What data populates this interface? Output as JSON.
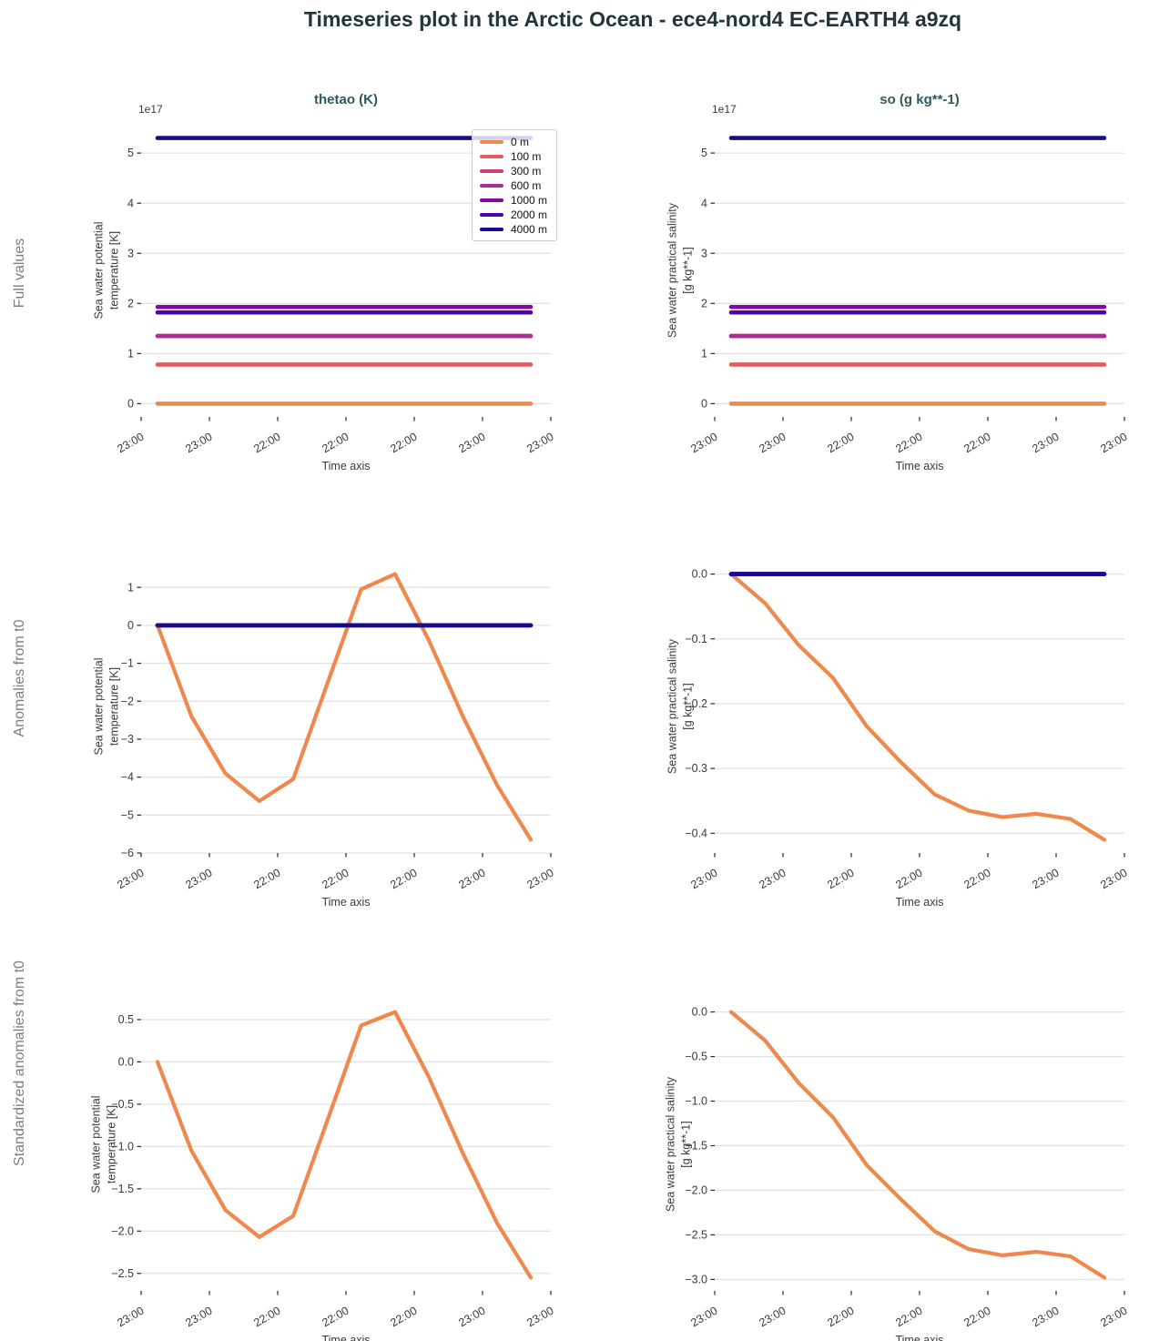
{
  "title": "Timeseries plot in the Arctic Ocean - ece4-nord4 EC-EARTH4 a9zq",
  "columns": [
    {
      "title": "thetao (K)"
    },
    {
      "title": "so (g kg**-1)"
    }
  ],
  "rows": [
    {
      "label": "Full values"
    },
    {
      "label": "Anomalies from t0"
    },
    {
      "label": "Standardized anomalies from t0"
    }
  ],
  "colors": {
    "title": "#22343c",
    "subplot_title": "#2c5a5a",
    "row_label": "#7e7e7e",
    "grid": "#e3e3e3",
    "tick_mark": "#262626",
    "tick_text": "#3a3a3a",
    "legend_border": "#cccccc",
    "depth_0m": "#f0884e",
    "depth_100m": "#de5f5b",
    "depth_300m": "#c64278",
    "depth_600m": "#ae2a94",
    "depth_1000m": "#8309a5",
    "depth_2000m": "#4d05a3",
    "depth_4000m": "#150d8d"
  },
  "legend": {
    "entries": [
      {
        "label": "0 m",
        "color": "#f0884e"
      },
      {
        "label": "100 m",
        "color": "#de5f5b"
      },
      {
        "label": "300 m",
        "color": "#c64278"
      },
      {
        "label": "600 m",
        "color": "#ae2a94"
      },
      {
        "label": "1000 m",
        "color": "#8309a5"
      },
      {
        "label": "2000 m",
        "color": "#4d05a3"
      },
      {
        "label": "4000 m",
        "color": "#150d8d"
      }
    ]
  },
  "time_axis": {
    "label": "Time axis",
    "tick_labels": [
      "23:00",
      "23:00",
      "22:00",
      "22:00",
      "22:00",
      "23:00",
      "23:00"
    ]
  },
  "chart_data": [
    {
      "id": "full-thetao",
      "type": "line",
      "row": "Full values",
      "col": "thetao (K)",
      "ylabel_lines": [
        "Sea water potential",
        "temperature [K]"
      ],
      "offset_text": "1e17",
      "ylim": [
        -0.265,
        5.565
      ],
      "grid": true,
      "legend": true,
      "legend_position": "upper right",
      "yticks": [
        {
          "v": 0,
          "label": "0"
        },
        {
          "v": 1,
          "label": "1"
        },
        {
          "v": 2,
          "label": "2"
        },
        {
          "v": 3,
          "label": "3"
        },
        {
          "v": 4,
          "label": "4"
        },
        {
          "v": 5,
          "label": "5"
        }
      ],
      "series": [
        {
          "name": "0 m",
          "color": "#f0884e",
          "values": 0.0
        },
        {
          "name": "100 m",
          "color": "#de5f5b",
          "values": 0.78
        },
        {
          "name": "300 m",
          "color": "#c64278",
          "values": 1.35
        },
        {
          "name": "600 m",
          "color": "#ae2a94",
          "values": 1.35
        },
        {
          "name": "1000 m",
          "color": "#8309a5",
          "values": 1.93
        },
        {
          "name": "2000 m",
          "color": "#4d05a3",
          "values": 1.82
        },
        {
          "name": "4000 m",
          "color": "#150d8d",
          "values": 5.3
        }
      ]
    },
    {
      "id": "full-so",
      "type": "line",
      "row": "Full values",
      "col": "so (g kg**-1)",
      "ylabel_lines": [
        "Sea water practical salinity",
        "[g kg**-1]"
      ],
      "offset_text": "1e17",
      "ylim": [
        -0.265,
        5.565
      ],
      "grid": true,
      "legend": false,
      "yticks": [
        {
          "v": 0,
          "label": "0"
        },
        {
          "v": 1,
          "label": "1"
        },
        {
          "v": 2,
          "label": "2"
        },
        {
          "v": 3,
          "label": "3"
        },
        {
          "v": 4,
          "label": "4"
        },
        {
          "v": 5,
          "label": "5"
        }
      ],
      "series": [
        {
          "name": "0 m",
          "color": "#f0884e",
          "values": 0.0
        },
        {
          "name": "100 m",
          "color": "#de5f5b",
          "values": 0.78
        },
        {
          "name": "300 m",
          "color": "#c64278",
          "values": 1.35
        },
        {
          "name": "600 m",
          "color": "#ae2a94",
          "values": 1.35
        },
        {
          "name": "1000 m",
          "color": "#8309a5",
          "values": 1.93
        },
        {
          "name": "2000 m",
          "color": "#4d05a3",
          "values": 1.82
        },
        {
          "name": "4000 m",
          "color": "#150d8d",
          "values": 5.3
        }
      ]
    },
    {
      "id": "anomaly-thetao",
      "type": "line",
      "row": "Anomalies from t0",
      "col": "thetao (K)",
      "ylabel_lines": [
        "Sea water potential",
        "temperature [K]"
      ],
      "offset_text": "",
      "ylim": [
        -6.0,
        1.7
      ],
      "grid": true,
      "legend": false,
      "yticks": [
        {
          "v": 1,
          "label": "1"
        },
        {
          "v": 0,
          "label": "0"
        },
        {
          "v": -1,
          "label": "−1"
        },
        {
          "v": -2,
          "label": "−2"
        },
        {
          "v": -3,
          "label": "−3"
        },
        {
          "v": -4,
          "label": "−4"
        },
        {
          "v": -5,
          "label": "−5"
        },
        {
          "v": -6,
          "label": "−6"
        }
      ],
      "series": [
        {
          "name": "0 m",
          "color": "#f0884e",
          "values": [
            0.0,
            -2.4,
            -3.9,
            -4.63,
            -4.05,
            -1.55,
            0.95,
            1.35,
            -0.4,
            -2.4,
            -4.2,
            -5.65
          ]
        },
        {
          "name": "100 m",
          "color": "#de5f5b",
          "values": 0.0
        },
        {
          "name": "300 m",
          "color": "#c64278",
          "values": 0.0
        },
        {
          "name": "600 m",
          "color": "#ae2a94",
          "values": 0.0
        },
        {
          "name": "1000 m",
          "color": "#8309a5",
          "values": 0.0
        },
        {
          "name": "2000 m",
          "color": "#4d05a3",
          "values": 0.0
        },
        {
          "name": "4000 m",
          "color": "#150d8d",
          "values": 0.0
        }
      ]
    },
    {
      "id": "anomaly-so",
      "type": "line",
      "row": "Anomalies from t0",
      "col": "so (g kg**-1)",
      "ylabel_lines": [
        "Sea water practical salinity",
        "[g kg**-1]"
      ],
      "offset_text": "",
      "ylim": [
        -0.4305,
        0.0205
      ],
      "grid": true,
      "legend": false,
      "yticks": [
        {
          "v": 0.0,
          "label": "0.0"
        },
        {
          "v": -0.1,
          "label": "−0.1"
        },
        {
          "v": -0.2,
          "label": "−0.2"
        },
        {
          "v": -0.3,
          "label": "−0.3"
        },
        {
          "v": -0.4,
          "label": "−0.4"
        }
      ],
      "series": [
        {
          "name": "0 m",
          "color": "#f0884e",
          "values": [
            0.0,
            -0.045,
            -0.11,
            -0.16,
            -0.235,
            -0.29,
            -0.34,
            -0.365,
            -0.375,
            -0.37,
            -0.378,
            -0.41
          ]
        },
        {
          "name": "100 m",
          "color": "#de5f5b",
          "values": 0.0
        },
        {
          "name": "300 m",
          "color": "#c64278",
          "values": 0.0
        },
        {
          "name": "600 m",
          "color": "#ae2a94",
          "values": 0.0
        },
        {
          "name": "1000 m",
          "color": "#8309a5",
          "values": 0.0
        },
        {
          "name": "2000 m",
          "color": "#4d05a3",
          "values": 0.0
        },
        {
          "name": "4000 m",
          "color": "#150d8d",
          "values": 0.0
        }
      ]
    },
    {
      "id": "standardized-thetao",
      "type": "line",
      "row": "Standardized anomalies from t0",
      "col": "thetao (K)",
      "ylabel_lines": [
        "Sea water potential",
        "temperature [K]"
      ],
      "offset_text": "",
      "ylim": [
        -2.707,
        0.747
      ],
      "grid": true,
      "legend": false,
      "yticks": [
        {
          "v": 0.5,
          "label": "0.5"
        },
        {
          "v": 0.0,
          "label": "0.0"
        },
        {
          "v": -0.5,
          "label": "−0.5"
        },
        {
          "v": -1.0,
          "label": "−1.0"
        },
        {
          "v": -1.5,
          "label": "−1.5"
        },
        {
          "v": -2.0,
          "label": "−2.0"
        },
        {
          "v": -2.5,
          "label": "−2.5"
        }
      ],
      "series": [
        {
          "name": "0 m",
          "color": "#f0884e",
          "values": [
            0.0,
            -1.05,
            -1.75,
            -2.07,
            -1.82,
            -0.7,
            0.43,
            0.59,
            -0.18,
            -1.08,
            -1.9,
            -2.55
          ]
        }
      ]
    },
    {
      "id": "standardized-so",
      "type": "line",
      "row": "Standardized anomalies from t0",
      "col": "so (g kg**-1)",
      "ylabel_lines": [
        "Sea water practical salinity",
        "[g kg**-1]"
      ],
      "offset_text": "",
      "ylim": [
        -3.129,
        0.149
      ],
      "grid": true,
      "legend": false,
      "yticks": [
        {
          "v": 0.0,
          "label": "0.0"
        },
        {
          "v": -0.5,
          "label": "−0.5"
        },
        {
          "v": -1.0,
          "label": "−1.0"
        },
        {
          "v": -1.5,
          "label": "−1.5"
        },
        {
          "v": -2.0,
          "label": "−2.0"
        },
        {
          "v": -2.5,
          "label": "−2.5"
        },
        {
          "v": -3.0,
          "label": "−3.0"
        }
      ],
      "series": [
        {
          "name": "0 m",
          "color": "#f0884e",
          "values": [
            0.0,
            -0.32,
            -0.8,
            -1.18,
            -1.72,
            -2.1,
            -2.46,
            -2.66,
            -2.73,
            -2.69,
            -2.74,
            -2.98
          ]
        }
      ]
    }
  ]
}
